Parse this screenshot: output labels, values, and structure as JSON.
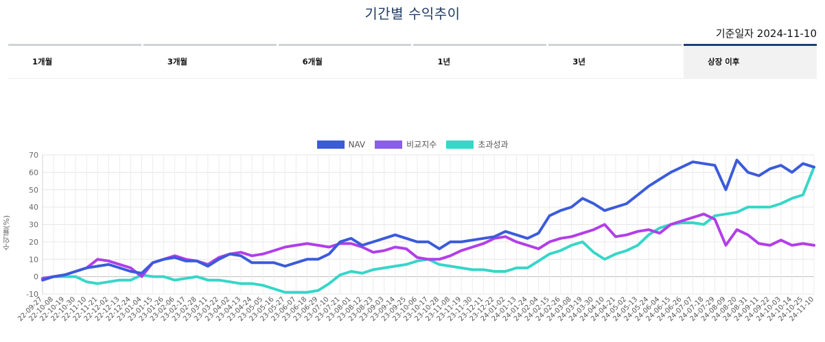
{
  "page": {
    "title": "기간별 수익추이",
    "base_date": "기준일자 2024-11-10"
  },
  "tabs": [
    {
      "label": "1개월",
      "active": false
    },
    {
      "label": "3개월",
      "active": false
    },
    {
      "label": "6개월",
      "active": false
    },
    {
      "label": "1년",
      "active": false
    },
    {
      "label": "3년",
      "active": false
    },
    {
      "label": "상장 이후",
      "active": true
    }
  ],
  "colors": {
    "nav": "#3b5bdb",
    "benchmark": "#b23ee8",
    "excess": "#36d6c8",
    "legend_benchmark": "#8a5cf0"
  },
  "chart_data": {
    "type": "line",
    "ylabel": "수익률(%)",
    "ylim": [
      -10,
      70
    ],
    "yticks": [
      -10,
      0,
      10,
      20,
      30,
      40,
      50,
      60,
      70
    ],
    "grid": true,
    "legend": "top-center",
    "x": [
      "22-09-27",
      "22-10-08",
      "22-10-19",
      "22-10-30",
      "22-11-10",
      "22-11-21",
      "22-12-02",
      "22-12-13",
      "22-12-24",
      "23-01-04",
      "23-01-15",
      "23-01-26",
      "23-02-06",
      "23-02-17",
      "23-02-28",
      "23-03-11",
      "23-03-22",
      "23-04-02",
      "23-04-13",
      "23-04-24",
      "23-05-05",
      "23-05-16",
      "23-05-27",
      "23-06-07",
      "23-06-18",
      "23-06-29",
      "23-07-10",
      "23-07-21",
      "23-08-01",
      "23-08-12",
      "23-08-23",
      "23-09-03",
      "23-09-14",
      "23-09-25",
      "23-10-06",
      "23-10-17",
      "23-10-28",
      "23-11-08",
      "23-11-19",
      "23-11-30",
      "23-12-11",
      "23-12-22",
      "24-01-02",
      "24-01-13",
      "24-01-24",
      "24-02-04",
      "24-02-15",
      "24-02-26",
      "24-03-08",
      "24-03-19",
      "24-03-30",
      "24-04-10",
      "24-04-21",
      "24-05-02",
      "24-05-13",
      "24-05-24",
      "24-06-04",
      "24-06-15",
      "24-06-26",
      "24-07-07",
      "24-07-18",
      "24-07-29",
      "24-08-09",
      "24-08-20",
      "24-08-31",
      "24-09-11",
      "24-09-22",
      "24-10-03",
      "24-10-14",
      "24-10-25",
      "24-11-10"
    ],
    "series": [
      {
        "name": "NAV",
        "values": [
          -2,
          0,
          1,
          3,
          5,
          6,
          7,
          5,
          3,
          2,
          8,
          10,
          11,
          9,
          9,
          6,
          10,
          13,
          12,
          8,
          8,
          8,
          6,
          8,
          10,
          10,
          13,
          20,
          22,
          18,
          20,
          22,
          24,
          22,
          20,
          20,
          16,
          20,
          20,
          21,
          22,
          23,
          26,
          24,
          22,
          25,
          35,
          38,
          40,
          45,
          42,
          38,
          40,
          42,
          47,
          52,
          56,
          60,
          63,
          66,
          65,
          64,
          50,
          67,
          60,
          58,
          62,
          64,
          60,
          65,
          63
        ]
      },
      {
        "name": "비교지수",
        "values": [
          -1,
          0,
          1,
          3,
          5,
          10,
          9,
          7,
          5,
          0,
          8,
          10,
          12,
          10,
          9,
          7,
          11,
          13,
          14,
          12,
          13,
          15,
          17,
          18,
          19,
          18,
          17,
          19,
          19,
          17,
          14,
          15,
          17,
          16,
          11,
          10,
          10,
          12,
          15,
          17,
          19,
          22,
          23,
          20,
          18,
          16,
          20,
          22,
          23,
          25,
          27,
          30,
          23,
          24,
          26,
          27,
          25,
          30,
          32,
          34,
          36,
          33,
          18,
          27,
          24,
          19,
          18,
          21,
          18,
          19,
          18
        ]
      },
      {
        "name": "초과성과",
        "values": [
          -1,
          0,
          0,
          0,
          -3,
          -4,
          -3,
          -2,
          -2,
          1,
          0,
          0,
          -2,
          -1,
          0,
          -2,
          -2,
          -3,
          -4,
          -4,
          -5,
          -7,
          -9,
          -9,
          -9,
          -8,
          -4,
          1,
          3,
          2,
          4,
          5,
          6,
          7,
          9,
          10,
          7,
          6,
          5,
          4,
          4,
          3,
          3,
          5,
          5,
          9,
          13,
          15,
          18,
          20,
          14,
          10,
          13,
          15,
          18,
          24,
          28,
          30,
          31,
          31,
          30,
          35,
          36,
          37,
          40,
          40,
          40,
          42,
          45,
          47,
          63
        ]
      }
    ]
  }
}
